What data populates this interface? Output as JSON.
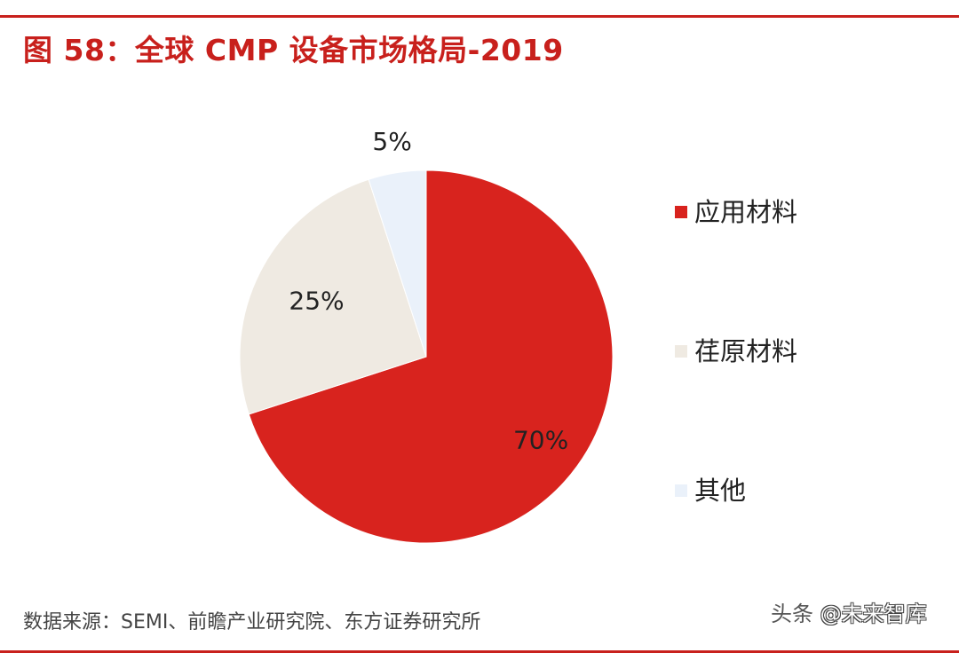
{
  "title": "图 58：全球 CMP 设备市场格局-2019",
  "source": "数据来源：SEMI、前瞻产业研究院、东方证券研究所",
  "watermark": {
    "left": "头条",
    "right": "@未来智库"
  },
  "colors": {
    "brand": "#c8201c",
    "series": [
      "#d8231e",
      "#efeae2",
      "#eaf1fa"
    ]
  },
  "chart_data": {
    "type": "pie",
    "title": "图 58：全球 CMP 设备市场格局-2019",
    "categories": [
      "应用材料",
      "荏原材料",
      "其他"
    ],
    "values": [
      70,
      25,
      5
    ],
    "labels": [
      "70%",
      "25%",
      "5%"
    ],
    "legend": {
      "position": "right",
      "entries": [
        "应用材料",
        "荏原材料",
        "其他"
      ]
    }
  }
}
